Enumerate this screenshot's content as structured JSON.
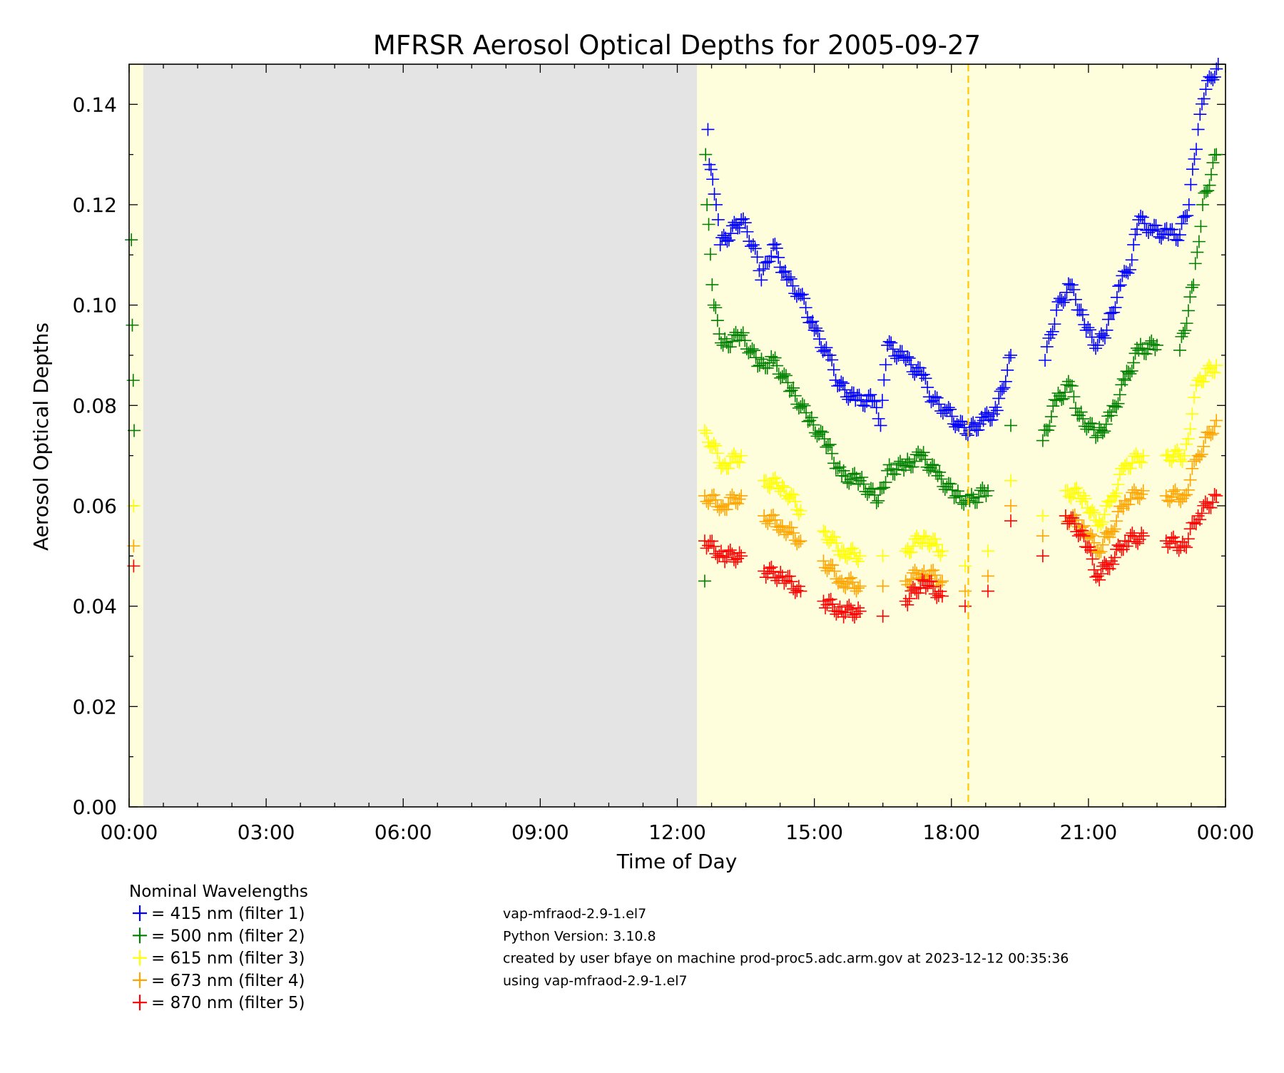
{
  "chart_data": {
    "type": "scatter",
    "title": "MFRSR Aerosol Optical Depths for 2005-09-27",
    "xlabel": "Time of Day",
    "ylabel": "Aerosol Optical Depths",
    "xlim_hours": [
      0,
      24
    ],
    "ylim": [
      0,
      0.148
    ],
    "x_tick_labels": [
      "00:00",
      "03:00",
      "06:00",
      "09:00",
      "12:00",
      "15:00",
      "18:00",
      "21:00",
      "00:00"
    ],
    "y_tick_labels": [
      "0.00",
      "0.02",
      "0.04",
      "0.06",
      "0.08",
      "0.10",
      "0.12",
      "0.14"
    ],
    "y_tick_values": [
      0,
      0.02,
      0.04,
      0.06,
      0.08,
      0.1,
      0.12,
      0.14
    ],
    "night_region_hours": [
      0.31,
      12.43
    ],
    "day_region_color": "#fefddc",
    "night_region_color": "#e4e4e4",
    "marker_line_hour": 18.37,
    "marker_line_color": "#ffc800",
    "series": [
      {
        "name": "415 nm (filter 1)",
        "color": "#0000ff",
        "x": [
          12.67,
          12.7,
          12.85,
          12.94,
          13.4,
          13.66,
          13.84,
          14.1,
          14.4,
          14.7,
          15.0,
          15.3,
          15.55,
          15.9,
          16.27,
          16.45,
          16.6,
          17.0,
          17.35,
          17.6,
          17.9,
          18.16,
          18.4,
          18.7,
          19.0,
          19.3,
          20.05,
          20.3,
          20.6,
          20.8,
          20.95,
          21.2,
          21.4,
          21.7,
          21.95,
          22.1,
          22.4,
          22.75,
          23.0,
          23.2,
          23.4,
          23.57,
          23.84
        ],
        "y": [
          0.135,
          0.128,
          0.12,
          0.112,
          0.117,
          0.112,
          0.105,
          0.112,
          0.105,
          0.102,
          0.095,
          0.09,
          0.084,
          0.081,
          0.081,
          0.076,
          0.092,
          0.089,
          0.086,
          0.081,
          0.079,
          0.076,
          0.075,
          0.077,
          0.079,
          0.09,
          0.089,
          0.099,
          0.104,
          0.099,
          0.095,
          0.092,
          0.095,
          0.104,
          0.109,
          0.117,
          0.115,
          0.114,
          0.114,
          0.12,
          0.135,
          0.143,
          0.148
        ]
      },
      {
        "name": "500 nm (filter 2)",
        "color": "#008000",
        "x": [
          0.05,
          0.07,
          0.09,
          0.11,
          12.6,
          12.62,
          12.65,
          12.8,
          13.0,
          13.4,
          13.8,
          14.1,
          14.5,
          14.9,
          15.3,
          15.6,
          16.0,
          16.4,
          16.6,
          17.0,
          17.35,
          17.7,
          18.1,
          18.4,
          18.8,
          19.3,
          20.0,
          20.3,
          20.6,
          20.8,
          21.2,
          21.5,
          21.8,
          22.1,
          22.5,
          23.0,
          23.3,
          23.5,
          23.8
        ],
        "y": [
          0.113,
          0.096,
          0.085,
          0.075,
          0.045,
          0.13,
          0.12,
          0.1,
          0.092,
          0.094,
          0.088,
          0.089,
          0.083,
          0.077,
          0.072,
          0.066,
          0.065,
          0.061,
          0.067,
          0.068,
          0.07,
          0.066,
          0.062,
          0.061,
          0.063,
          0.076,
          0.073,
          0.081,
          0.084,
          0.078,
          0.074,
          0.078,
          0.085,
          0.091,
          0.092,
          0.091,
          0.104,
          0.12,
          0.13
        ]
      },
      {
        "name": "615 nm (filter 3)",
        "color": "#ffff00",
        "x": [
          0.1,
          12.6,
          13.0,
          13.4,
          13.9,
          14.3,
          14.7,
          15.2,
          15.6,
          16.0,
          16.5,
          17.0,
          17.4,
          17.8,
          18.3,
          18.8,
          19.3,
          20.0,
          20.5,
          20.9,
          21.2,
          21.5,
          21.8,
          22.2,
          22.7,
          23.1,
          23.4,
          23.8
        ],
        "y": [
          0.06,
          0.075,
          0.068,
          0.07,
          0.065,
          0.064,
          0.059,
          0.055,
          0.051,
          0.05,
          0.05,
          0.051,
          0.054,
          0.051,
          0.048,
          0.051,
          0.065,
          0.058,
          0.063,
          0.062,
          0.056,
          0.061,
          0.068,
          0.07,
          0.07,
          0.07,
          0.085,
          0.088
        ]
      },
      {
        "name": "673 nm (filter 4)",
        "color": "#ffa500",
        "x": [
          0.1,
          12.6,
          13.0,
          13.4,
          13.9,
          14.3,
          14.7,
          15.2,
          15.6,
          16.0,
          16.5,
          17.0,
          17.4,
          17.8,
          18.3,
          18.8,
          19.3,
          20.0,
          20.5,
          20.9,
          21.2,
          21.5,
          21.8,
          22.2,
          22.7,
          23.1,
          23.4,
          23.8
        ],
        "y": [
          0.052,
          0.062,
          0.06,
          0.062,
          0.058,
          0.056,
          0.053,
          0.049,
          0.045,
          0.044,
          0.044,
          0.045,
          0.047,
          0.045,
          0.043,
          0.046,
          0.06,
          0.054,
          0.058,
          0.056,
          0.051,
          0.055,
          0.061,
          0.063,
          0.062,
          0.062,
          0.07,
          0.077
        ]
      },
      {
        "name": "870 nm (filter 5)",
        "color": "#ff0000",
        "x": [
          0.1,
          12.6,
          13.0,
          13.4,
          13.9,
          14.3,
          14.7,
          15.2,
          15.6,
          16.0,
          16.5,
          17.0,
          17.4,
          17.8,
          18.3,
          18.8,
          19.3,
          20.0,
          20.5,
          20.9,
          21.2,
          21.5,
          21.8,
          22.2,
          22.7,
          23.1,
          23.4,
          23.8
        ],
        "y": [
          0.048,
          0.053,
          0.05,
          0.05,
          0.047,
          0.046,
          0.043,
          0.041,
          0.039,
          0.039,
          0.038,
          0.041,
          0.045,
          0.042,
          0.04,
          0.043,
          0.057,
          0.05,
          0.058,
          0.054,
          0.046,
          0.049,
          0.053,
          0.054,
          0.053,
          0.052,
          0.058,
          0.062
        ]
      }
    ]
  },
  "legend": {
    "title": "Nominal Wavelengths",
    "items": [
      {
        "label": "= 415 nm (filter 1)",
        "color": "#0000ff"
      },
      {
        "label": "= 500 nm (filter 2)",
        "color": "#008000"
      },
      {
        "label": "= 615 nm (filter 3)",
        "color": "#ffff00"
      },
      {
        "label": "= 673 nm (filter 4)",
        "color": "#ffa500"
      },
      {
        "label": "= 870 nm (filter 5)",
        "color": "#ff0000"
      }
    ]
  },
  "info_lines": [
    "vap-mfraod-2.9-1.el7",
    "Python Version: 3.10.8",
    "created by user bfaye on machine prod-proc5.adc.arm.gov at 2023-12-12 00:35:36",
    "using vap-mfraod-2.9-1.el7"
  ]
}
